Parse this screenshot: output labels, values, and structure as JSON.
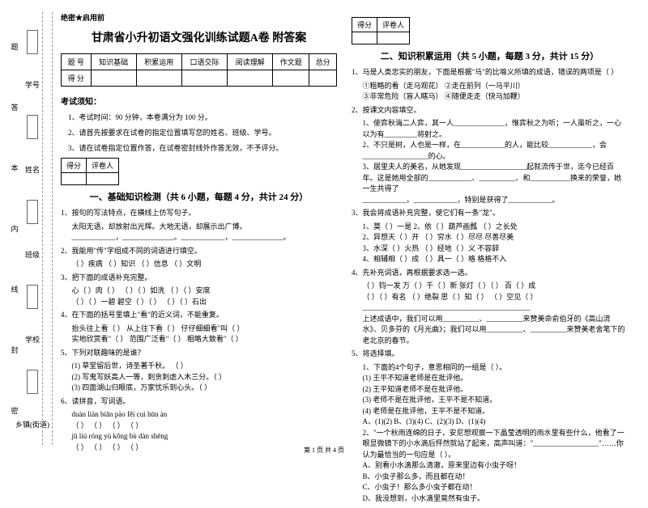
{
  "confidential": "绝密★启用前",
  "title": "甘肃省小升初语文强化训练试题A卷 附答案",
  "score_table": {
    "headers": [
      "题  号",
      "知识基础",
      "积累运用",
      "口语交际",
      "阅读理解",
      "作文题",
      "总分"
    ],
    "row_label": "得  分"
  },
  "notice": {
    "heading": "考试须知：",
    "items": [
      "1、考试时间：90 分钟，本卷满分为 100 分。",
      "2、请首先按要求在试卷的指定位置填写您的姓名、班级、学号。",
      "3、请在试卷指定位置作答，在试卷密封线外作答无效，不予评分。"
    ]
  },
  "small_score": {
    "c1": "得分",
    "c2": "评卷人"
  },
  "section1": {
    "title": "一、基础知识检测（共 6 小题，每题 4 分，共计 24 分）",
    "q1": "1、按句的写法特点，在横线上仿写句子。",
    "q1_line": "太阳无语，却放射出光辉。大地无语，却展示出广博。",
    "q1_blanks": "____________，______________。____________，______________。",
    "q2": "2、我能用\"传\"字组成不同的词语进行填空。",
    "q2_line": "（     ）疾病        （     ）知识        （     ）信息        （     ）文明",
    "q3": "3、把下面的成语补充完整。",
    "q3_l1": "心（    ）肉（    ）    （    ）（    ）如洗    （    ）（    ）安席",
    "q3_l2": "（    ）（    ）一碧    碧空（    ）（    ）    （    ）（    ）石出",
    "q4": "4、在下面的括号里填上\"看\"的近义词，不能重复。",
    "q4_l1": "抬头往上看（   ）  从上往下看（   ）  仔仔细细看\"叫（   ）",
    "q4_l2": "实地欣赏看\"（   ）  范围广泛看\"（   ）   粗略大致看\"（   ）",
    "q5": "5、下列对联趣味的是谁？",
    "q5_l1": "(1) 草堂留后世，诗圣著千秋。      （    ）",
    "q5_l2": "(2) 写鬼写妖高人一等，刺贪刺虐入木三分。（    ）",
    "q5_l3": "(3) 四面湖山归眼底，万家忧乐到心头。（    ）",
    "q6": "6、读拼音，写词语。",
    "q6_l1": "duàn  liàn            biān pào           fěi cuì            hūn àn",
    "q6_l2": "（         ）      （         ）     （         ）     （         ）",
    "q6_l3": "jū liú              róng yù            kǒng  bù           dàn shēng",
    "q6_l4": "（         ）      （         ）     （         ）     （         ）"
  },
  "section2": {
    "title": "二、知识积累运用（共 5 小题，每题 3 分，共计 15 分）",
    "q1": "1、马是人类忠实的朋友，下面是根据\"马\"的比喻义所填的成语，错误的两项是（    ）",
    "q1_l1": "①粗略的看（走马观花）         ②走在前列（一马平川）",
    "q1_l2": "③非常危险（盲人瞎马）         ④随便走走（快马加鞭）",
    "q2": "2、按课文内容填空。",
    "q2_l1": "1、使弈秋诲二人弈，其一人______________，惟弈秋之为听；一人虽听之，一心以为有_________将射之。",
    "q2_l2": "2、不只是树，人也是一样，在____________的人，能比较____________，会__________________的心。",
    "q2_l3": "3、居里夫人的美名，从她发现__________________起就流传于世，迄今已经百年。这是她用全部的____________、__________、和___________换来的荣誉，她一生共得了",
    "q2_l4": "____________，____________，特别是获得了____________。",
    "q3": "3、我会将成语补充完整，使它们有一条\"龙\"。",
    "q3_l1": "1、莫（  ）一是     2、依（  ）葫芦画瓢     （  ）之长处",
    "q3_l2": "2、异想天（  ）开     （  ）穷水（  ）尽尽     尽善尽美",
    "q3_l3": "3、水深（  ）火热     （  ）经地（  ）义     不容辞",
    "q3_l4": "4、相辅相（  ）成     （  ）具一（  ）格     格格不入",
    "q4": "4、先补充词语，再根据要求选一选。",
    "q4_l1": "（   ）钧一发     万（   ）千（   ）新     张灯（   ）（   ）     百（   ）成",
    "q4_l2": "（   ）（   ）有名     （   ）绝裂     思（   ）知（   ）     （   ）空见（   ）",
    "q4_blank": "______________________________________________",
    "q4_txt1": "上述成语中，我们可以用__________、__________来赞美命俞伯牙的《高山流水》、贝多芬的《月光曲》；我们可以用__________、__________来赞美老舍笔下的老北京的春节。",
    "q5": "5、将选择填。",
    "q5_l1": "1、下面的4个句子，意思相同的一组是（    ）。",
    "q5_l2": "(1) 王平不知道老师是在批评他。",
    "q5_l3": "(2) 王平知道老师不是在批评他。",
    "q5_l4": "(3) 老师不是在批评他，王平不是不知道。",
    "q5_l5": "(4) 老师是在批评他，王平不是不知道。",
    "q5_choices": "A、(1)(2)    B、(3)(4)    C、(2)(3)    D、(1)(4)",
    "q5_p2": "2、\"一个秋雨连绵的日子，安尼想观察一下晶莹透明的雨水里有些什么，他看了一眼显微镜下的小水滴后怦然就站了起来，高声叫道：\"__________________\"……你认为最恰当的一句应是（   ）。",
    "q5_opts": {
      "a": "A、别看小水滴那么清澈，原来里边有小虫子呀！",
      "b": "B、小虫子那么多，而且都在动！",
      "c": "C、小虫子！那么多小虫子都在动！",
      "d": "D、我没想到，小水滴里竟然有虫子。"
    }
  },
  "side": {
    "labels": [
      "学号",
      "姓名",
      "班级",
      "学校",
      "乡镇(街道)"
    ],
    "ticks": [
      "题",
      "答",
      "本",
      "内",
      "线",
      "封",
      "密"
    ]
  },
  "footer": "第 1 页 共 4 页"
}
